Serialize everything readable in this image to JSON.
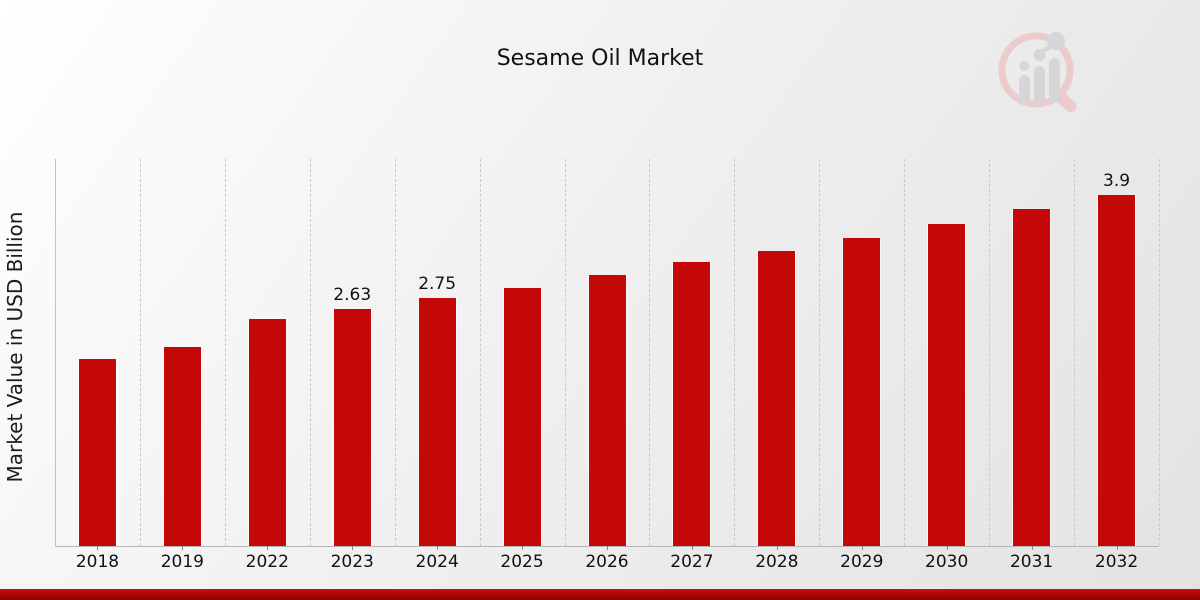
{
  "page": {
    "title": "Sesame Oil Market"
  },
  "chart_data": {
    "type": "bar",
    "title": "Sesame Oil Market",
    "xlabel": "",
    "ylabel": "Market Value in USD Billion",
    "categories": [
      "2018",
      "2019",
      "2022",
      "2023",
      "2024",
      "2025",
      "2026",
      "2027",
      "2028",
      "2029",
      "2030",
      "2031",
      "2032"
    ],
    "values": [
      2.08,
      2.21,
      2.52,
      2.63,
      2.75,
      2.87,
      3.01,
      3.16,
      3.28,
      3.42,
      3.58,
      3.74,
      3.9
    ],
    "data_labels": {
      "2023": "2.63",
      "2024": "2.75",
      "2032": "3.9"
    },
    "ylim": [
      0,
      4.3
    ],
    "grid": "vertical-dashed",
    "legend": "none",
    "bar_color": "#c40707",
    "label_color": "#111111"
  },
  "branding": {
    "logo_name": "market-research-future-logo",
    "accent_band_color": "#a00404"
  }
}
